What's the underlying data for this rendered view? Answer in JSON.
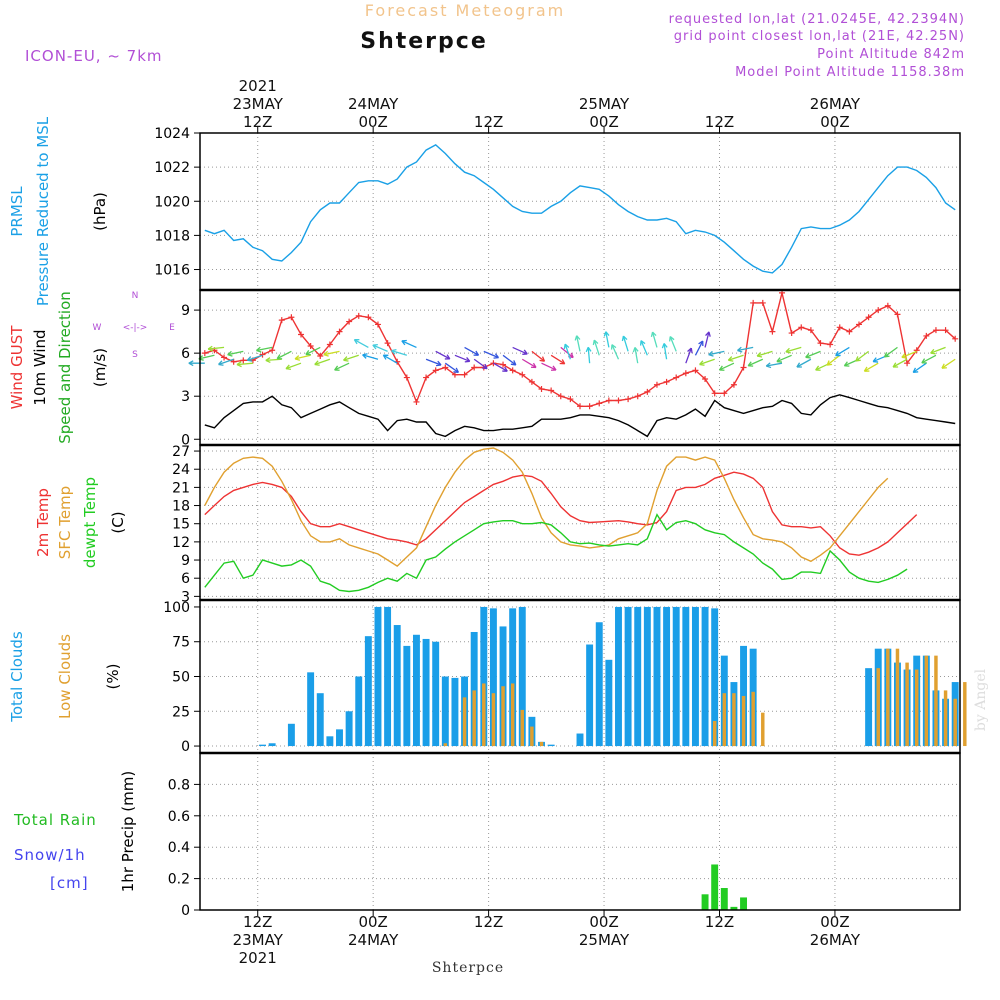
{
  "header": {
    "product_title": "Forecast Meteogram",
    "station": "Shterpce",
    "model": "ICON-EU, ~ 7km",
    "requested_point": "requested lon,lat (21.0245E, 42.2394N)",
    "grid_point": "grid point closest lon,lat (21E, 42.25N)",
    "point_altitude": "Point Altitude 842m",
    "model_altitude": "Model Point Altitude 1158.38m",
    "footer_station": "Shterpce",
    "watermark": "by Angel",
    "compass": {
      "n": "N",
      "s": "S",
      "w": "W",
      "e": "E",
      "arrows": "<-|->"
    }
  },
  "time_axis": {
    "top_labels": [
      {
        "slot": 6,
        "lines": [
          "2021",
          "23MAY",
          "12Z"
        ]
      },
      {
        "slot": 18,
        "lines": [
          "24MAY",
          "00Z"
        ]
      },
      {
        "slot": 30,
        "lines": [
          "12Z"
        ]
      },
      {
        "slot": 42,
        "lines": [
          "25MAY",
          "00Z"
        ]
      },
      {
        "slot": 54,
        "lines": [
          "12Z"
        ]
      },
      {
        "slot": 66,
        "lines": [
          "26MAY",
          "00Z"
        ]
      }
    ],
    "bottom_labels": [
      {
        "slot": 6,
        "lines": [
          "12Z",
          "23MAY",
          "2021"
        ]
      },
      {
        "slot": 18,
        "lines": [
          "00Z",
          "24MAY"
        ]
      },
      {
        "slot": 30,
        "lines": [
          "12Z"
        ]
      },
      {
        "slot": 42,
        "lines": [
          "00Z",
          "25MAY"
        ]
      },
      {
        "slot": 54,
        "lines": [
          "12Z"
        ]
      },
      {
        "slot": 66,
        "lines": [
          "00Z",
          "26MAY"
        ]
      }
    ],
    "gridline_slots": [
      6,
      18,
      30,
      42,
      54,
      66
    ]
  },
  "chart_data": [
    {
      "type": "line",
      "panel": "pressure",
      "ylabel_lines": [
        {
          "text": "PRMSL",
          "color": "#1aa0e6"
        },
        {
          "text": "Pressure Reduced to MSL",
          "color": "#1aa0e6"
        },
        {
          "text": "(hPa)",
          "color": "#000000"
        }
      ],
      "ylim": [
        1014.8,
        1024
      ],
      "yticks": [
        1016,
        1018,
        1020,
        1022,
        1024
      ],
      "series": [
        {
          "color": "#1aa0e6",
          "values": [
            1018.3,
            1018.1,
            1018.3,
            1017.7,
            1017.8,
            1017.3,
            1017.1,
            1016.6,
            1016.5,
            1017.0,
            1017.6,
            1018.8,
            1019.5,
            1019.9,
            1019.9,
            1020.5,
            1021.1,
            1021.2,
            1021.2,
            1021.0,
            1021.3,
            1022.0,
            1022.3,
            1023.0,
            1023.3,
            1022.8,
            1022.2,
            1021.7,
            1021.5,
            1021.1,
            1020.7,
            1020.2,
            1019.7,
            1019.4,
            1019.3,
            1019.3,
            1019.7,
            1020.0,
            1020.5,
            1020.9,
            1020.8,
            1020.7,
            1020.3,
            1019.8,
            1019.4,
            1019.1,
            1018.9,
            1018.9,
            1019.0,
            1018.8,
            1018.1,
            1018.3,
            1018.2,
            1018.0,
            1017.6,
            1017.1,
            1016.6,
            1016.2,
            1015.9,
            1015.8,
            1016.3,
            1017.3,
            1018.4,
            1018.5,
            1018.4,
            1018.4,
            1018.6,
            1018.9,
            1019.4,
            1020.1,
            1020.8,
            1021.5,
            1022.0,
            1022.0,
            1021.8,
            1021.4,
            1020.8,
            1019.9,
            1019.5
          ]
        }
      ]
    },
    {
      "type": "line",
      "panel": "wind",
      "ylabel_lines": [
        {
          "text": "Wind GUST",
          "color": "#ee3333"
        },
        {
          "text": "10m Wind",
          "color": "#000000"
        },
        {
          "text": "Speed and Direction",
          "color": "#22aa22"
        },
        {
          "text": "(m/s)",
          "color": "#000000"
        }
      ],
      "ylim": [
        -0.4,
        10.4
      ],
      "yticks": [
        0,
        3,
        6,
        9
      ],
      "series": [
        {
          "color": "#ee3333",
          "values": [
            6.0,
            6.2,
            5.7,
            5.4,
            5.5,
            5.5,
            5.9,
            6.2,
            8.3,
            8.5,
            7.3,
            6.5,
            5.8,
            6.6,
            7.5,
            8.2,
            8.6,
            8.5,
            8.0,
            6.7,
            5.4,
            4.3,
            2.6,
            4.3,
            4.8,
            5.0,
            4.5,
            4.5,
            5.0,
            5.0,
            5.3,
            5.2,
            4.8,
            4.5,
            4.0,
            3.5,
            3.4,
            3.0,
            2.8,
            2.3,
            2.3,
            2.5,
            2.7,
            2.7,
            2.8,
            3.0,
            3.3,
            3.8,
            4.0,
            4.3,
            4.6,
            4.8,
            4.2,
            3.2,
            3.2,
            3.8,
            5.0,
            9.5,
            9.5,
            7.5,
            10.2,
            7.4,
            7.8,
            7.6,
            6.7,
            6.6,
            7.8,
            7.5,
            8.0,
            8.5,
            9.0,
            9.3,
            8.7,
            5.3,
            6.2,
            7.2,
            7.6,
            7.6,
            7.0
          ]
        },
        {
          "color": "#000000",
          "values": [
            1.0,
            0.8,
            1.5,
            2.0,
            2.5,
            2.6,
            2.6,
            3.0,
            2.4,
            2.2,
            1.5,
            1.8,
            2.1,
            2.4,
            2.6,
            2.2,
            1.8,
            1.6,
            1.4,
            0.6,
            1.3,
            1.4,
            1.2,
            1.2,
            0.4,
            0.2,
            0.6,
            0.9,
            0.8,
            0.6,
            0.6,
            0.7,
            0.7,
            0.8,
            0.9,
            1.4,
            1.4,
            1.4,
            1.5,
            1.7,
            1.7,
            1.6,
            1.5,
            1.3,
            1.0,
            0.6,
            0.2,
            1.3,
            1.5,
            1.4,
            1.7,
            2.1,
            1.6,
            2.7,
            2.2,
            2.0,
            1.8,
            2.0,
            2.2,
            2.3,
            2.7,
            2.5,
            1.8,
            1.7,
            2.4,
            2.9,
            3.1,
            2.9,
            2.7,
            2.5,
            2.3,
            2.2,
            2.0,
            1.8,
            1.5,
            1.4,
            1.3,
            1.2,
            1.1
          ]
        }
      ],
      "wind_barb_band": [
        5.3,
        6.4
      ]
    },
    {
      "type": "line",
      "panel": "temperature",
      "ylabel_lines": [
        {
          "text": "2m Temp",
          "color": "#ee3333"
        },
        {
          "text": "SFC Temp",
          "color": "#e0a030"
        },
        {
          "text": "dewpt Temp",
          "color": "#22cc22"
        },
        {
          "text": "(C)",
          "color": "#000000"
        }
      ],
      "ylim": [
        2.4,
        28
      ],
      "yticks": [
        3,
        6,
        9,
        12,
        15,
        18,
        21,
        24,
        27
      ],
      "series": [
        {
          "color": "#ee3333",
          "values": [
            16.5,
            18.0,
            19.5,
            20.5,
            21.0,
            21.5,
            21.8,
            21.5,
            21.0,
            19.5,
            17.0,
            15.0,
            14.5,
            14.5,
            15.0,
            14.5,
            14.0,
            13.5,
            13.0,
            12.5,
            12.3,
            12.0,
            11.5,
            12.5,
            14.0,
            15.5,
            17.0,
            18.5,
            19.5,
            20.5,
            21.5,
            22.0,
            22.7,
            23.0,
            22.8,
            22.0,
            20.0,
            17.8,
            16.3,
            15.5,
            15.2,
            15.3,
            15.4,
            15.5,
            15.3,
            15.0,
            14.8,
            15.2,
            17.0,
            20.5,
            21.0,
            21.0,
            21.5,
            22.5,
            23.0,
            23.5,
            23.2,
            22.5,
            21.0,
            17.0,
            14.8,
            14.5,
            14.5,
            14.3,
            14.5,
            13.0,
            11.0,
            10.0,
            9.8,
            10.3,
            11.0,
            12.0,
            13.5,
            15.0,
            16.5
          ]
        },
        {
          "color": "#e0a030",
          "values": [
            18.0,
            21.0,
            23.5,
            25.0,
            25.8,
            26.0,
            25.8,
            24.5,
            22.0,
            19.0,
            15.5,
            13.0,
            12.0,
            12.0,
            12.5,
            11.5,
            11.0,
            10.5,
            10.0,
            9.0,
            8.0,
            9.5,
            11.0,
            14.5,
            18.0,
            21.0,
            23.5,
            25.5,
            26.8,
            27.3,
            27.5,
            26.8,
            25.5,
            23.5,
            20.0,
            16.0,
            13.5,
            12.0,
            11.5,
            11.3,
            11.0,
            11.2,
            11.5,
            12.5,
            13.0,
            13.5,
            15.0,
            20.5,
            24.5,
            26.0,
            26.0,
            25.5,
            26.0,
            25.5,
            22.5,
            19.0,
            16.0,
            13.2,
            12.5,
            12.3,
            12.0,
            11.0,
            9.5,
            8.8,
            9.8,
            11.0,
            13.0,
            15.0,
            17.0,
            19.0,
            21.0,
            22.5
          ]
        },
        {
          "color": "#22cc22",
          "values": [
            4.5,
            6.5,
            8.5,
            8.8,
            6.0,
            6.5,
            9.0,
            8.5,
            8.0,
            8.2,
            9.0,
            8.0,
            5.5,
            5.0,
            4.0,
            3.8,
            4.0,
            4.5,
            5.3,
            6.0,
            5.5,
            6.8,
            6.0,
            9.0,
            9.5,
            10.8,
            12.0,
            13.0,
            14.0,
            15.0,
            15.3,
            15.5,
            15.5,
            15.0,
            15.0,
            15.2,
            14.8,
            13.5,
            12.0,
            11.7,
            11.8,
            11.5,
            11.3,
            11.5,
            11.7,
            11.5,
            12.5,
            16.5,
            14.0,
            15.2,
            15.5,
            15.0,
            14.0,
            13.5,
            13.2,
            12.0,
            11.0,
            10.0,
            8.5,
            7.5,
            5.8,
            6.0,
            7.0,
            7.0,
            6.8,
            10.5,
            9.0,
            7.0,
            6.0,
            5.5,
            5.3,
            5.8,
            6.5,
            7.5
          ]
        }
      ]
    },
    {
      "type": "bar",
      "panel": "clouds",
      "ylabel_lines": [
        {
          "text": "Total Clouds",
          "color": "#1aa0e6"
        },
        {
          "text": "Low Clouds",
          "color": "#e0a030"
        },
        {
          "text": "(%)",
          "color": "#000000"
        }
      ],
      "ylim": [
        -5,
        105
      ],
      "yticks": [
        0,
        25,
        50,
        75,
        100
      ],
      "series": [
        {
          "color": "#1a9ee8",
          "values": [
            0,
            0,
            0,
            0,
            0,
            0,
            1,
            2,
            0,
            16,
            0,
            53,
            38,
            7,
            12,
            25,
            50,
            79,
            100,
            100,
            87,
            72,
            80,
            77,
            75,
            50,
            49,
            50,
            82,
            100,
            99,
            86,
            99,
            100,
            21,
            3,
            1,
            0,
            0,
            9,
            73,
            89,
            62,
            100,
            100,
            100,
            100,
            100,
            100,
            100,
            100,
            100,
            100,
            99,
            65,
            46,
            72,
            70,
            0,
            0,
            0,
            0,
            0,
            0,
            0,
            0,
            0,
            0,
            0,
            56,
            70,
            70,
            60,
            55,
            65,
            65,
            40,
            34,
            46
          ]
        },
        {
          "color": "#e0a030",
          "values": [
            0,
            0,
            0,
            0,
            0,
            0,
            0,
            0,
            0,
            0,
            0,
            0,
            0,
            0,
            0,
            0,
            0,
            0,
            0,
            0,
            0,
            0,
            0,
            0,
            0,
            2,
            0,
            35,
            40,
            45,
            38,
            43,
            45,
            26,
            14,
            3,
            0,
            0,
            0,
            0,
            0,
            0,
            0,
            0,
            0,
            0,
            0,
            0,
            0,
            0,
            0,
            0,
            0,
            18,
            38,
            38,
            36,
            39,
            24,
            0,
            0,
            0,
            0,
            0,
            0,
            0,
            0,
            0,
            0,
            0,
            56,
            70,
            70,
            60,
            55,
            65,
            65,
            40,
            34,
            46
          ]
        }
      ]
    },
    {
      "type": "bar",
      "panel": "precip",
      "ylabel_lines": [
        {
          "text": "1hr Precip (mm)",
          "color": "#000000"
        }
      ],
      "legend": [
        {
          "text": "Total  Rain",
          "color": "#22bb22"
        },
        {
          "text": "Snow/1h",
          "color": "#4444ee"
        },
        {
          "text": "[cm]",
          "color": "#4444ee"
        }
      ],
      "ylim": [
        0,
        1.0
      ],
      "yticks": [
        0,
        0.2,
        0.4,
        0.6,
        0.8
      ],
      "series": [
        {
          "color": "#22cc22",
          "points": [
            [
              52,
              0.1
            ],
            [
              53,
              0.29
            ],
            [
              54,
              0.14
            ],
            [
              55,
              0.02
            ],
            [
              56,
              0.08
            ]
          ]
        }
      ]
    }
  ],
  "wind_barbs": {
    "segments": [
      {
        "from": 0,
        "to": 9,
        "angle": 190,
        "colors": [
          "#33aacc",
          "#55cc55",
          "#99dd33"
        ]
      },
      {
        "from": 9,
        "to": 17,
        "angle": 200,
        "colors": [
          "#55cc55",
          "#99dd33",
          "#ccdd22"
        ]
      },
      {
        "from": 17,
        "to": 23,
        "angle": 160,
        "colors": [
          "#1aa0e6",
          "#44ccdd"
        ]
      },
      {
        "from": 23,
        "to": 33,
        "angle": 330,
        "colors": [
          "#6633cc",
          "#3355dd"
        ]
      },
      {
        "from": 33,
        "to": 38,
        "angle": 330,
        "colors": [
          "#ee3333",
          "#cc33aa"
        ]
      },
      {
        "from": 38,
        "to": 50,
        "angle": 105,
        "colors": [
          "#33ccdd",
          "#55ddbb"
        ]
      },
      {
        "from": 50,
        "to": 53,
        "angle": 70,
        "colors": [
          "#6633cc",
          "#3355dd"
        ]
      },
      {
        "from": 53,
        "to": 65,
        "angle": 200,
        "colors": [
          "#33aacc",
          "#55cc55",
          "#99dd33"
        ]
      },
      {
        "from": 65,
        "to": 79,
        "angle": 210,
        "colors": [
          "#55cc55",
          "#99dd33",
          "#ccdd22",
          "#1aa0e6"
        ]
      }
    ]
  }
}
